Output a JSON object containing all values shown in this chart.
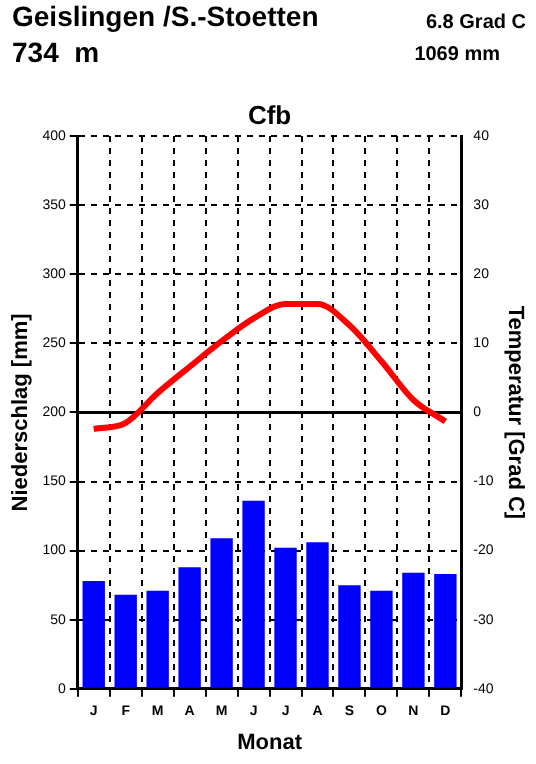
{
  "chart_data": {
    "type": "bar",
    "title": "Geislingen /S.-Stoetten",
    "subtitle": "Cfb",
    "xlabel": "Monat",
    "ylabel": "Niederschlag [mm]",
    "y2label": "Temperatur [Grad C]",
    "annotations": [
      "734  m",
      "6.8 Grad C",
      "1069 mm"
    ],
    "categories": [
      "J",
      "F",
      "M",
      "A",
      "M",
      "J",
      "J",
      "A",
      "S",
      "O",
      "N",
      "D"
    ],
    "series": [
      {
        "color": "#0000ff",
        "values": [
          78,
          68,
          71,
          88,
          109,
          136,
          102,
          106,
          75,
          71,
          84,
          83
        ]
      },
      {
        "type": "line",
        "axis": "y2",
        "color": "#ff0000",
        "values": [
          -2.4,
          -1.5,
          2.8,
          6.6,
          10.3,
          13.6,
          15.7,
          15.7,
          12.6,
          7.4,
          1.8,
          -1.3
        ]
      }
    ],
    "ylim": [
      0,
      400
    ],
    "yticks": [
      0,
      50,
      100,
      150,
      200,
      250,
      300,
      350,
      400
    ],
    "y2lim": [
      -40,
      40
    ],
    "y2ticks": [
      -40,
      -30,
      -20,
      -10,
      0,
      10,
      20,
      30,
      40
    ],
    "ref_lines": [
      {
        "axis": "y2",
        "value": 0,
        "color": "#000000",
        "line_style": "solid"
      }
    ],
    "grid": true,
    "line_style": "solid",
    "marker": "none",
    "legend": false
  }
}
